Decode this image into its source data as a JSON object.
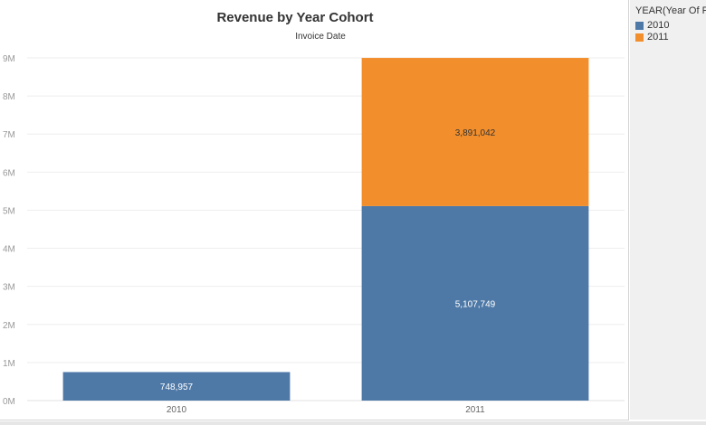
{
  "chart_data": {
    "type": "bar",
    "stacked": true,
    "title": "Revenue by Year Cohort",
    "subtitle": "Invoice Date",
    "categories": [
      "2010",
      "2011"
    ],
    "series": [
      {
        "name": "2010",
        "color": "#4e79a7",
        "values": [
          748957,
          5107749
        ],
        "labels": [
          "748,957",
          "5,107,749"
        ],
        "label_color": "#ffffff"
      },
      {
        "name": "2011",
        "color": "#f28e2b",
        "values": [
          0,
          3891042
        ],
        "labels": [
          "",
          "3,891,042"
        ],
        "label_color": "#333333"
      }
    ],
    "ylim": [
      0,
      9000000
    ],
    "yticks": [
      0,
      1000000,
      2000000,
      3000000,
      4000000,
      5000000,
      6000000,
      7000000,
      8000000,
      9000000
    ],
    "ytick_labels": [
      "0M",
      "1M",
      "2M",
      "3M",
      "4M",
      "5M",
      "6M",
      "7M",
      "8M",
      "9M"
    ],
    "grid": true,
    "legend_placement": "right"
  },
  "legend": {
    "title": "YEAR(Year Of First",
    "items": [
      {
        "label": "2010",
        "color": "#4e79a7"
      },
      {
        "label": "2011",
        "color": "#f28e2b"
      }
    ]
  }
}
